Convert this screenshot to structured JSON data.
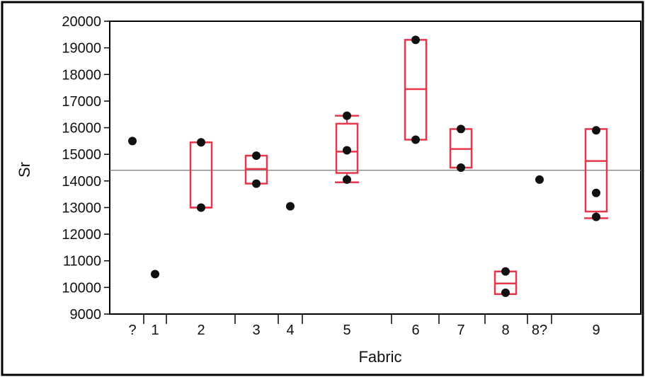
{
  "chart_data": {
    "type": "box",
    "xlabel": "Fabric",
    "ylabel": "Sr",
    "ylim": [
      9000,
      20000
    ],
    "yticks": [
      9000,
      10000,
      11000,
      12000,
      13000,
      14000,
      15000,
      16000,
      17000,
      18000,
      19000,
      20000
    ],
    "reference_line": 14400,
    "colors": {
      "box": "#e8364b",
      "point": "#111111",
      "frame": "#000000",
      "reference": "#777777"
    },
    "categories": [
      "?",
      "1",
      "2",
      "3",
      "4",
      "5",
      "6",
      "7",
      "8",
      "8?",
      "9"
    ],
    "groups": [
      {
        "label": "?",
        "points": [
          15500
        ]
      },
      {
        "label": "1",
        "points": [
          10500
        ]
      },
      {
        "label": "2",
        "points": [
          15450,
          13000
        ],
        "box": {
          "q1": 13000,
          "median": 13000,
          "q3": 15450,
          "whisker_low": 13000,
          "whisker_high": 15450
        }
      },
      {
        "label": "3",
        "points": [
          14950,
          13900
        ],
        "box": {
          "q1": 13900,
          "median": 14450,
          "q3": 14950,
          "whisker_low": 13900,
          "whisker_high": 14950
        }
      },
      {
        "label": "4",
        "points": [
          13050
        ]
      },
      {
        "label": "5",
        "points": [
          16450,
          15150,
          14050
        ],
        "box": {
          "q1": 14300,
          "median": 15100,
          "q3": 16150,
          "whisker_low": 13950,
          "whisker_high": 16450
        }
      },
      {
        "label": "6",
        "points": [
          19300,
          15550
        ],
        "box": {
          "q1": 15550,
          "median": 17450,
          "q3": 19300,
          "whisker_low": 15550,
          "whisker_high": 19300
        }
      },
      {
        "label": "7",
        "points": [
          15950,
          14500
        ],
        "box": {
          "q1": 14500,
          "median": 15200,
          "q3": 15950,
          "whisker_low": 14500,
          "whisker_high": 15950
        }
      },
      {
        "label": "8",
        "points": [
          10600,
          9800
        ],
        "box": {
          "q1": 9750,
          "median": 10150,
          "q3": 10600,
          "whisker_low": 9750,
          "whisker_high": 10600
        }
      },
      {
        "label": "8?",
        "points": [
          14050
        ]
      },
      {
        "label": "9",
        "points": [
          15900,
          13550,
          12650
        ],
        "box": {
          "q1": 12850,
          "median": 14750,
          "q3": 15950,
          "whisker_low": 12600,
          "whisker_high": 15950
        }
      }
    ]
  }
}
